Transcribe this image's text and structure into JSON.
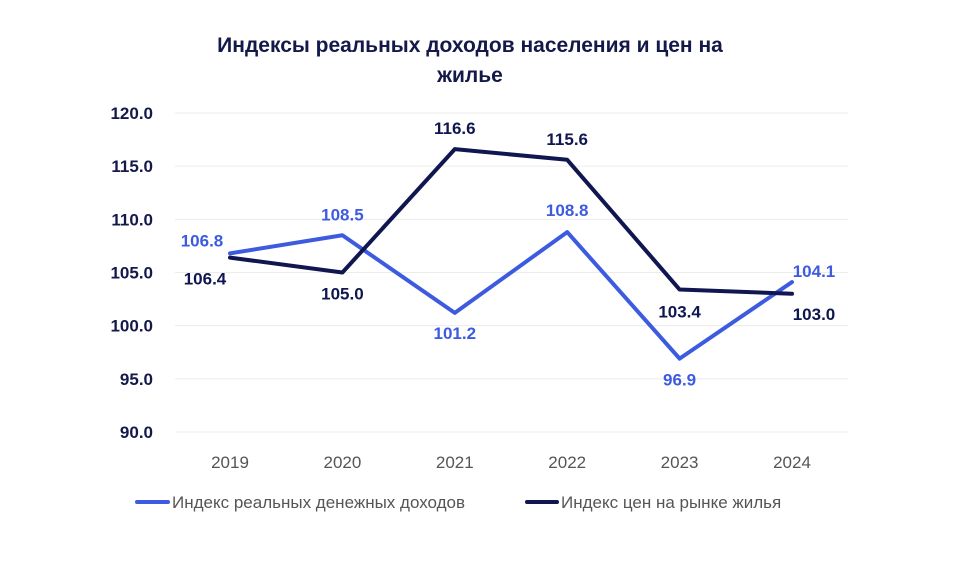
{
  "chart_data": {
    "type": "line",
    "title_lines": [
      "Индексы реальных доходов населения и цен на",
      "жилье"
    ],
    "categories": [
      "2019",
      "2020",
      "2021",
      "2022",
      "2023",
      "2024"
    ],
    "y_ticks": [
      "90.0",
      "95.0",
      "100.0",
      "105.0",
      "110.0",
      "115.0",
      "120.0"
    ],
    "ylim": [
      90,
      120
    ],
    "grid": true,
    "legend_position": "bottom",
    "series": [
      {
        "name": "Индекс реальных денежных доходов",
        "color": "#3d5be0",
        "values": [
          106.8,
          108.5,
          101.2,
          108.8,
          96.9,
          104.1
        ],
        "labels": [
          "106.8",
          "108.5",
          "101.2",
          "108.8",
          "96.9",
          "104.1"
        ]
      },
      {
        "name": "Индекс цен на рынке жилья",
        "color": "#0f1650",
        "values": [
          106.4,
          105.0,
          116.6,
          115.6,
          103.4,
          103.0
        ],
        "labels": [
          "106.4",
          "105.0",
          "116.6",
          "115.6",
          "103.4",
          "103.0"
        ]
      }
    ]
  }
}
